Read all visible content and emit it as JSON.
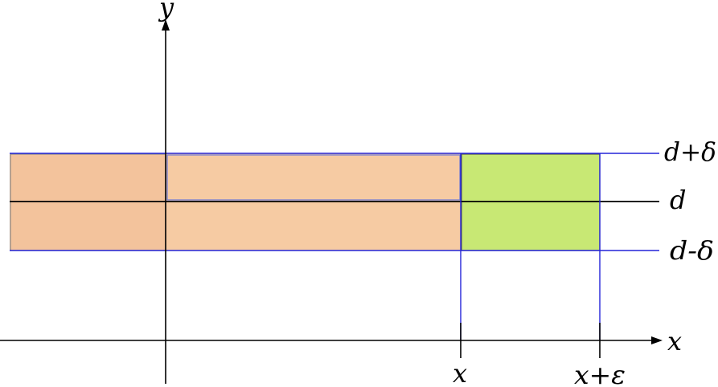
{
  "labels": {
    "y_axis": "y",
    "x_axis": "x",
    "d_plus_delta": "d+δ",
    "d": "d",
    "d_minus_delta": "d-δ",
    "x_tick": "x",
    "x_plus_epsilon_tick": "x+ε"
  },
  "colors": {
    "orange_fill": "#f6cba3",
    "orange_fill_dark": "#f3c39c",
    "green_fill": "#c8e874",
    "blue_line": "#2424d8",
    "axis": "#000000"
  }
}
